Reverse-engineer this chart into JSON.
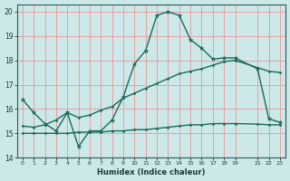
{
  "title": "",
  "xlabel": "Humidex (Indice chaleur)",
  "ylabel": "",
  "xlim": [
    -0.5,
    23.5
  ],
  "ylim": [
    14,
    20.3
  ],
  "xticks": [
    0,
    1,
    2,
    3,
    4,
    5,
    6,
    7,
    8,
    9,
    10,
    11,
    12,
    13,
    14,
    15,
    16,
    17,
    18,
    19,
    21,
    22,
    23
  ],
  "yticks": [
    14,
    15,
    16,
    17,
    18,
    19,
    20
  ],
  "bg_color": "#cce8e8",
  "grid_color": "#e8a0a0",
  "line_color": "#1a6b5a",
  "curve1_x": [
    0,
    1,
    2,
    3,
    4,
    5,
    6,
    7,
    8,
    9,
    10,
    11,
    12,
    13,
    14,
    15,
    16,
    17,
    18,
    19,
    21,
    22,
    23
  ],
  "curve1_y": [
    16.4,
    15.85,
    15.4,
    15.1,
    15.85,
    14.45,
    15.1,
    15.1,
    15.55,
    16.5,
    17.85,
    18.4,
    19.85,
    20.0,
    19.85,
    18.85,
    18.5,
    18.05,
    18.1,
    18.1,
    17.65,
    15.6,
    15.45
  ],
  "curve2_x": [
    0,
    1,
    2,
    3,
    4,
    5,
    6,
    7,
    8,
    9,
    10,
    11,
    12,
    13,
    14,
    15,
    16,
    17,
    18,
    19,
    21,
    22,
    23
  ],
  "curve2_y": [
    15.3,
    15.25,
    15.35,
    15.55,
    15.85,
    15.65,
    15.75,
    15.95,
    16.1,
    16.45,
    16.65,
    16.85,
    17.05,
    17.25,
    17.45,
    17.55,
    17.65,
    17.8,
    17.95,
    18.0,
    17.7,
    17.55,
    17.5
  ],
  "curve3_x": [
    0,
    1,
    2,
    3,
    4,
    5,
    6,
    7,
    8,
    9,
    10,
    11,
    12,
    13,
    14,
    15,
    16,
    17,
    18,
    19,
    21,
    22,
    23
  ],
  "curve3_y": [
    15.0,
    15.0,
    15.0,
    15.0,
    15.0,
    15.05,
    15.05,
    15.05,
    15.1,
    15.1,
    15.15,
    15.15,
    15.2,
    15.25,
    15.3,
    15.35,
    15.35,
    15.4,
    15.4,
    15.4,
    15.38,
    15.35,
    15.35
  ]
}
